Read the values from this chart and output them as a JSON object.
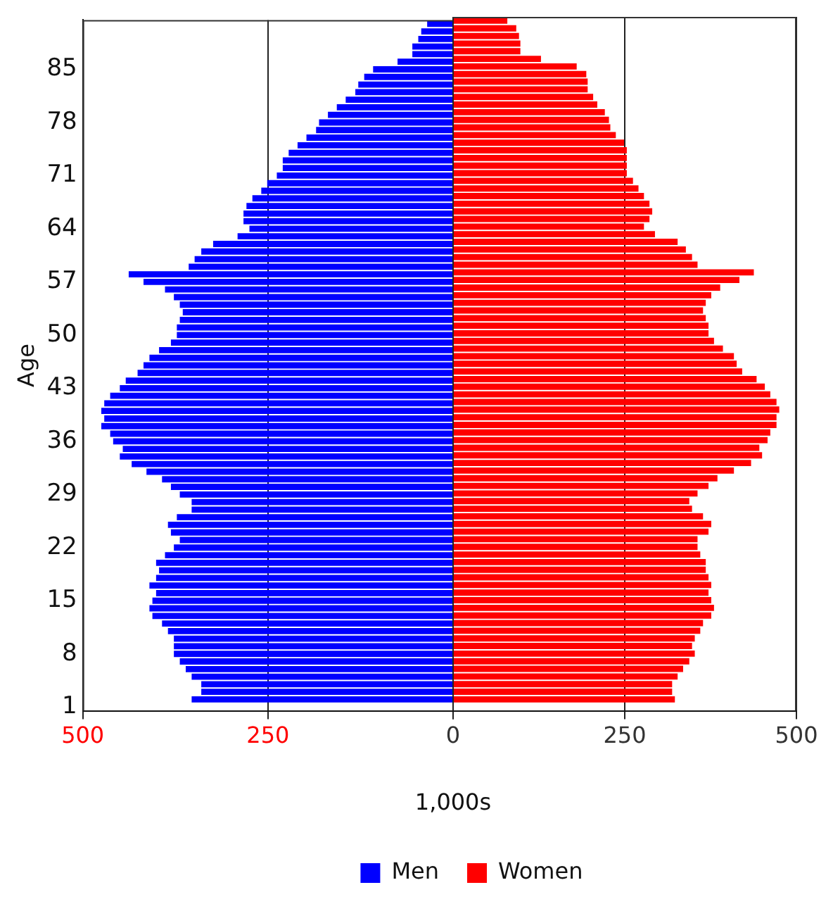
{
  "chart_data": [
    {
      "type": "bar",
      "orientation": "horizontal",
      "ylabel": "Age",
      "xlabel": "1,000s",
      "categories": [
        null,
        null,
        null,
        null,
        null,
        null,
        "85",
        null,
        null,
        null,
        null,
        null,
        null,
        "78",
        null,
        null,
        null,
        null,
        null,
        null,
        "71",
        null,
        null,
        null,
        null,
        null,
        null,
        "64",
        null,
        null,
        null,
        null,
        null,
        null,
        "57",
        null,
        null,
        null,
        null,
        null,
        null,
        "50",
        null,
        null,
        null,
        null,
        null,
        null,
        "43",
        null,
        null,
        null,
        null,
        null,
        null,
        "36",
        null,
        null,
        null,
        null,
        null,
        null,
        "29",
        null,
        null,
        null,
        null,
        null,
        null,
        "22",
        null,
        null,
        null,
        null,
        null,
        null,
        "15",
        null,
        null,
        null,
        null,
        null,
        null,
        "8",
        null,
        null,
        null,
        null,
        null,
        null,
        "1"
      ],
      "series": [
        {
          "name": "Men",
          "color": "#0000ff",
          "values": [
            35,
            43,
            47,
            55,
            55,
            75,
            108,
            120,
            128,
            132,
            145,
            157,
            169,
            181,
            185,
            198,
            210,
            222,
            230,
            230,
            238,
            251,
            259,
            271,
            279,
            283,
            283,
            275,
            291,
            324,
            340,
            349,
            357,
            438,
            418,
            389,
            377,
            369,
            365,
            369,
            373,
            373,
            381,
            397,
            410,
            418,
            426,
            442,
            450,
            463,
            471,
            475,
            471,
            475,
            463,
            459,
            446,
            450,
            434,
            414,
            393,
            381,
            369,
            353,
            353,
            373,
            385,
            381,
            369,
            377,
            389,
            401,
            397,
            401,
            410,
            401,
            406,
            410,
            406,
            393,
            385,
            377,
            377,
            377,
            369,
            361,
            353,
            340,
            340,
            353,
            null
          ]
        }
      ],
      "xlim": [
        500,
        0
      ],
      "xticks": [
        500,
        250,
        {
          "value": 0,
          "label": null
        }
      ],
      "grid": "x",
      "legend": "bottom"
    },
    {
      "type": "bar",
      "orientation": "horizontal",
      "categories": [
        null,
        null,
        null,
        null,
        null,
        null,
        "85",
        null,
        null,
        null,
        null,
        null,
        null,
        "78",
        null,
        null,
        null,
        null,
        null,
        null,
        "71",
        null,
        null,
        null,
        null,
        null,
        null,
        "64",
        null,
        null,
        null,
        null,
        null,
        null,
        "57",
        null,
        null,
        null,
        null,
        null,
        null,
        "50",
        null,
        null,
        null,
        null,
        null,
        null,
        "43",
        null,
        null,
        null,
        null,
        null,
        null,
        "36",
        null,
        null,
        null,
        null,
        null,
        null,
        "29",
        null,
        null,
        null,
        null,
        null,
        null,
        "22",
        null,
        null,
        null,
        null,
        null,
        null,
        "15",
        null,
        null,
        null,
        null,
        null,
        null,
        "8",
        null,
        null,
        null,
        null,
        null,
        null,
        "1"
      ],
      "series": [
        {
          "name": "Women",
          "color": "#ff0000",
          "values": [
            79,
            92,
            96,
            98,
            98,
            128,
            180,
            194,
            196,
            196,
            204,
            210,
            221,
            227,
            229,
            237,
            249,
            253,
            253,
            253,
            253,
            262,
            270,
            278,
            286,
            290,
            286,
            278,
            294,
            327,
            339,
            348,
            356,
            438,
            417,
            389,
            376,
            368,
            364,
            368,
            372,
            372,
            380,
            393,
            409,
            413,
            421,
            442,
            454,
            462,
            471,
            475,
            471,
            471,
            462,
            458,
            446,
            450,
            434,
            409,
            385,
            372,
            356,
            344,
            348,
            364,
            376,
            372,
            356,
            356,
            360,
            368,
            368,
            372,
            376,
            372,
            376,
            380,
            376,
            364,
            360,
            352,
            348,
            352,
            344,
            335,
            327,
            319,
            319,
            323,
            null
          ]
        }
      ],
      "xlim": [
        0,
        500
      ],
      "xticks": [
        0,
        250,
        500
      ],
      "grid": "x",
      "legend": "bottom",
      "tick_labels": "x"
    }
  ]
}
